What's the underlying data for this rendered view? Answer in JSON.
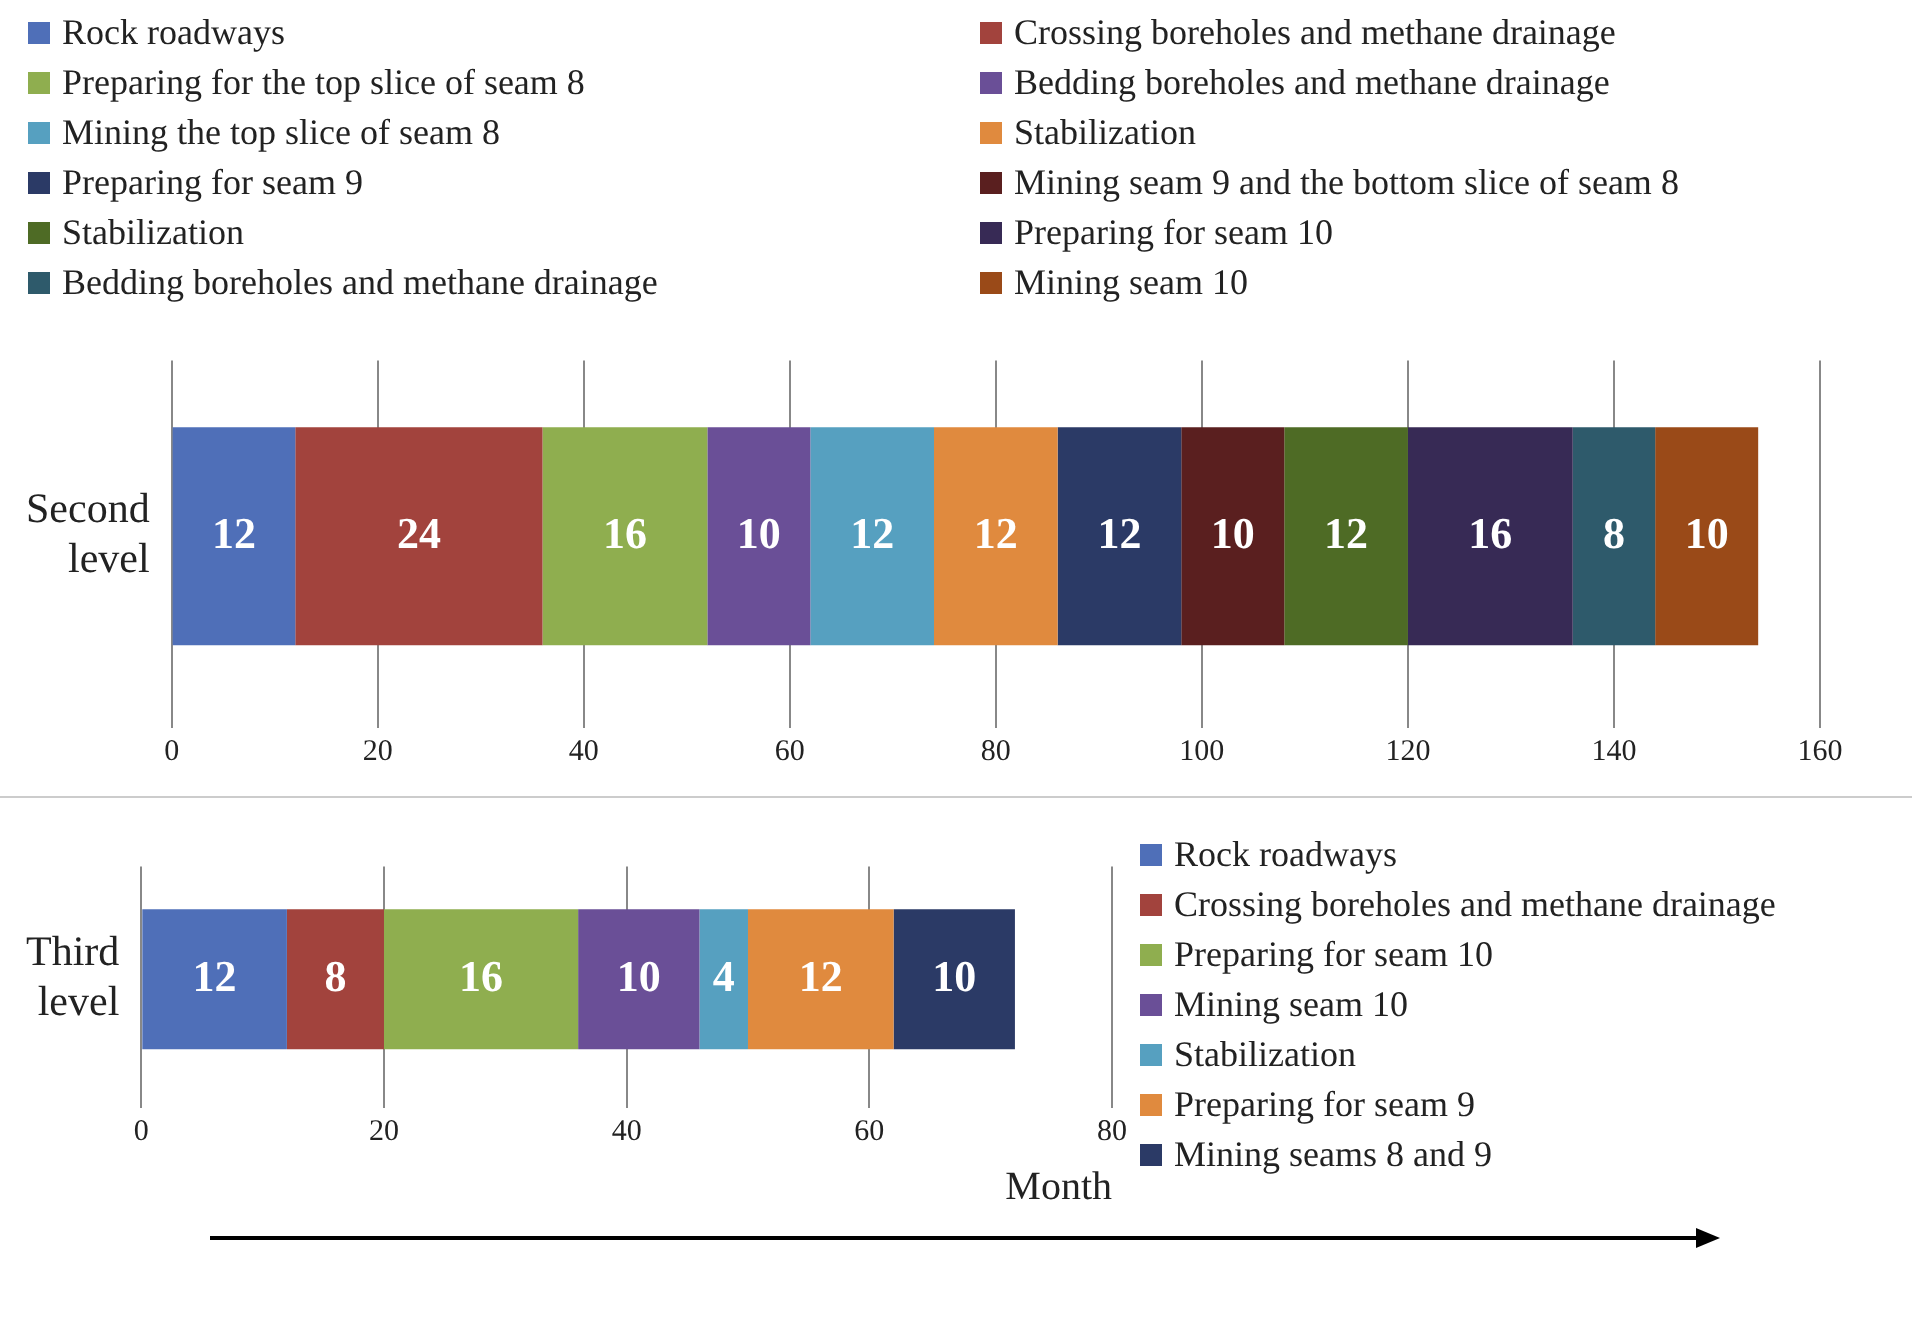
{
  "chart_data": [
    {
      "type": "bar",
      "orientation": "horizontal",
      "stacked": true,
      "data_labels": true,
      "grid": "x",
      "legend": "top",
      "categories": [
        "Second level"
      ],
      "xlim": [
        0,
        160
      ],
      "xticks": [
        0,
        20,
        40,
        60,
        80,
        100,
        120,
        140,
        160
      ],
      "series": [
        {
          "name": "Rock roadways",
          "color": "#4f6fb8",
          "values": [
            12
          ]
        },
        {
          "name": "Crossing boreholes and methane drainage",
          "color": "#a2433d",
          "values": [
            24
          ]
        },
        {
          "name": "Preparing for the top slice of seam 8",
          "color": "#8fae4f",
          "values": [
            16
          ]
        },
        {
          "name": "Bedding boreholes and methane drainage",
          "color": "#6a4f97",
          "values": [
            10
          ]
        },
        {
          "name": "Mining the top slice of seam 8",
          "color": "#56a0c0",
          "values": [
            12
          ]
        },
        {
          "name": "Stabilization",
          "color": "#e08a3e",
          "values": [
            12
          ]
        },
        {
          "name": "Preparing for seam 9",
          "color": "#2b3a66",
          "values": [
            12
          ]
        },
        {
          "name": "Mining seam 9 and the bottom slice of seam 8",
          "color": "#5a1f1f",
          "values": [
            10
          ]
        },
        {
          "name": "Stabilization",
          "color": "#4e6b25",
          "values": [
            12
          ]
        },
        {
          "name": "Preparing for seam 10",
          "color": "#372a55",
          "values": [
            16
          ]
        },
        {
          "name": "Bedding boreholes and methane drainage",
          "color": "#2e5a6b",
          "values": [
            8
          ]
        },
        {
          "name": "Mining seam 10",
          "color": "#9a4a18",
          "values": [
            10
          ]
        }
      ]
    },
    {
      "type": "bar",
      "orientation": "horizontal",
      "stacked": true,
      "data_labels": true,
      "grid": "x",
      "legend": "right",
      "categories": [
        "Third level"
      ],
      "xlim": [
        0,
        80
      ],
      "xticks": [
        0,
        20,
        40,
        60,
        80
      ],
      "xlabel": "Month",
      "series": [
        {
          "name": "Rock roadways",
          "color": "#4f6fb8",
          "values": [
            12
          ]
        },
        {
          "name": "Crossing boreholes and methane drainage",
          "color": "#a2433d",
          "values": [
            8
          ]
        },
        {
          "name": "Preparing for seam 10",
          "color": "#8fae4f",
          "values": [
            16
          ]
        },
        {
          "name": "Mining seam 10",
          "color": "#6a4f97",
          "values": [
            10
          ]
        },
        {
          "name": "Stabilization",
          "color": "#56a0c0",
          "values": [
            4
          ]
        },
        {
          "name": "Preparing for seam 9",
          "color": "#e08a3e",
          "values": [
            12
          ]
        },
        {
          "name": "Mining seams 8 and 9",
          "color": "#2b3a66",
          "values": [
            10
          ]
        }
      ]
    }
  ]
}
